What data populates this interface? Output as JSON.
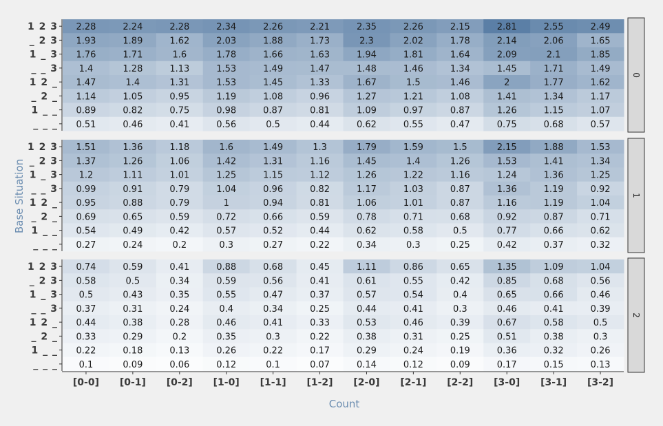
{
  "chart_data": {
    "type": "heatmap",
    "xlabel": "Count",
    "ylabel": "Base Situation",
    "columns": [
      "[0-0]",
      "[0-1]",
      "[0-2]",
      "[1-0]",
      "[1-1]",
      "[1-2]",
      "[2-0]",
      "[2-1]",
      "[2-2]",
      "[3-0]",
      "[3-1]",
      "[3-2]"
    ],
    "rows": [
      "1 2 3",
      "_ 2 3",
      "1 _ 3",
      "_ _ 3",
      "1 2 _",
      "_ 2 _",
      "1 _ _",
      "_ _ _"
    ],
    "color_low": "#ffffff",
    "color_high": "#5b7fa6",
    "value_range": [
      0,
      2.81
    ],
    "panels": [
      {
        "label": "0",
        "values": [
          [
            "2.28",
            "2.24",
            "2.28",
            "2.34",
            "2.26",
            "2.21",
            "2.35",
            "2.26",
            "2.15",
            "2.81",
            "2.55",
            "2.49"
          ],
          [
            "1.93",
            "1.89",
            "1.62",
            "2.03",
            "1.88",
            "1.73",
            "2.3",
            "2.02",
            "1.78",
            "2.14",
            "2.06",
            "1.65"
          ],
          [
            "1.76",
            "1.71",
            "1.6",
            "1.78",
            "1.66",
            "1.63",
            "1.94",
            "1.81",
            "1.64",
            "2.09",
            "2.1",
            "1.85"
          ],
          [
            "1.4",
            "1.28",
            "1.13",
            "1.53",
            "1.49",
            "1.47",
            "1.48",
            "1.46",
            "1.34",
            "1.45",
            "1.71",
            "1.49"
          ],
          [
            "1.47",
            "1.4",
            "1.31",
            "1.53",
            "1.45",
            "1.33",
            "1.67",
            "1.5",
            "1.46",
            "2",
            "1.77",
            "1.62"
          ],
          [
            "1.14",
            "1.05",
            "0.95",
            "1.19",
            "1.08",
            "0.96",
            "1.27",
            "1.21",
            "1.08",
            "1.41",
            "1.34",
            "1.17"
          ],
          [
            "0.89",
            "0.82",
            "0.75",
            "0.98",
            "0.87",
            "0.81",
            "1.09",
            "0.97",
            "0.87",
            "1.26",
            "1.15",
            "1.07"
          ],
          [
            "0.51",
            "0.46",
            "0.41",
            "0.56",
            "0.5",
            "0.44",
            "0.62",
            "0.55",
            "0.47",
            "0.75",
            "0.68",
            "0.57"
          ]
        ]
      },
      {
        "label": "1",
        "values": [
          [
            "1.51",
            "1.36",
            "1.18",
            "1.6",
            "1.49",
            "1.3",
            "1.79",
            "1.59",
            "1.5",
            "2.15",
            "1.88",
            "1.53"
          ],
          [
            "1.37",
            "1.26",
            "1.06",
            "1.42",
            "1.31",
            "1.16",
            "1.45",
            "1.4",
            "1.26",
            "1.53",
            "1.41",
            "1.34"
          ],
          [
            "1.2",
            "1.11",
            "1.01",
            "1.25",
            "1.15",
            "1.12",
            "1.26",
            "1.22",
            "1.16",
            "1.24",
            "1.36",
            "1.25"
          ],
          [
            "0.99",
            "0.91",
            "0.79",
            "1.04",
            "0.96",
            "0.82",
            "1.17",
            "1.03",
            "0.87",
            "1.36",
            "1.19",
            "0.92"
          ],
          [
            "0.95",
            "0.88",
            "0.79",
            "1",
            "0.94",
            "0.81",
            "1.06",
            "1.01",
            "0.87",
            "1.16",
            "1.19",
            "1.04"
          ],
          [
            "0.69",
            "0.65",
            "0.59",
            "0.72",
            "0.66",
            "0.59",
            "0.78",
            "0.71",
            "0.68",
            "0.92",
            "0.87",
            "0.71"
          ],
          [
            "0.54",
            "0.49",
            "0.42",
            "0.57",
            "0.52",
            "0.44",
            "0.62",
            "0.58",
            "0.5",
            "0.77",
            "0.66",
            "0.62"
          ],
          [
            "0.27",
            "0.24",
            "0.2",
            "0.3",
            "0.27",
            "0.22",
            "0.34",
            "0.3",
            "0.25",
            "0.42",
            "0.37",
            "0.32"
          ]
        ]
      },
      {
        "label": "2",
        "values": [
          [
            "0.74",
            "0.59",
            "0.41",
            "0.88",
            "0.68",
            "0.45",
            "1.11",
            "0.86",
            "0.65",
            "1.35",
            "1.09",
            "1.04"
          ],
          [
            "0.58",
            "0.5",
            "0.34",
            "0.59",
            "0.56",
            "0.41",
            "0.61",
            "0.55",
            "0.42",
            "0.85",
            "0.68",
            "0.56"
          ],
          [
            "0.5",
            "0.43",
            "0.35",
            "0.55",
            "0.47",
            "0.37",
            "0.57",
            "0.54",
            "0.4",
            "0.65",
            "0.66",
            "0.46"
          ],
          [
            "0.37",
            "0.31",
            "0.24",
            "0.4",
            "0.34",
            "0.25",
            "0.44",
            "0.41",
            "0.3",
            "0.46",
            "0.41",
            "0.39"
          ],
          [
            "0.44",
            "0.38",
            "0.28",
            "0.46",
            "0.41",
            "0.33",
            "0.53",
            "0.46",
            "0.39",
            "0.67",
            "0.58",
            "0.5"
          ],
          [
            "0.33",
            "0.29",
            "0.2",
            "0.35",
            "0.3",
            "0.22",
            "0.38",
            "0.31",
            "0.25",
            "0.51",
            "0.38",
            "0.3"
          ],
          [
            "0.22",
            "0.18",
            "0.13",
            "0.26",
            "0.22",
            "0.17",
            "0.29",
            "0.24",
            "0.19",
            "0.36",
            "0.32",
            "0.26"
          ],
          [
            "0.1",
            "0.09",
            "0.06",
            "0.12",
            "0.1",
            "0.07",
            "0.14",
            "0.12",
            "0.09",
            "0.17",
            "0.15",
            "0.13"
          ]
        ]
      }
    ]
  }
}
